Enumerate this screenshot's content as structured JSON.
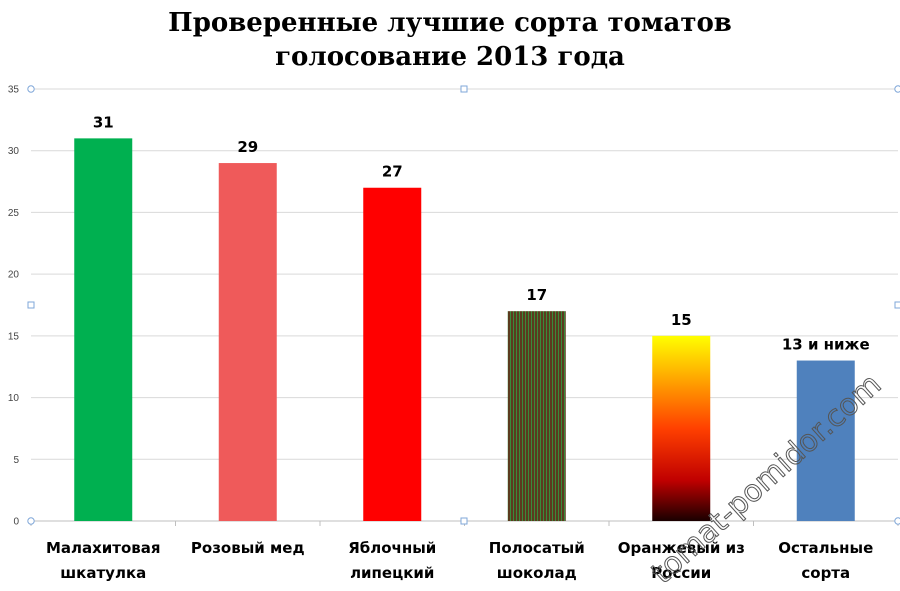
{
  "chart_data": {
    "type": "bar",
    "title_lines": [
      "Проверенные лучшие сорта томатов",
      "голосование 2013 года"
    ],
    "categories": [
      [
        "Малахитовая",
        "шкатулка"
      ],
      [
        "Розовый мед"
      ],
      [
        "Яблочный",
        "липецкий"
      ],
      [
        "Полосатый",
        "шоколад"
      ],
      [
        "Оранжевый из",
        "России"
      ],
      [
        "Остальные",
        "сорта"
      ]
    ],
    "values": [
      31,
      29,
      27,
      17,
      15,
      13
    ],
    "data_labels": [
      "31",
      "29",
      "27",
      "17",
      "15",
      "13 и ниже"
    ],
    "bar_colors": [
      "#00b050",
      "#ef5a5a",
      "#ff0000",
      "#5b3a1e",
      "gradient-yellow-red-black",
      "#4f81bd"
    ],
    "ylim": [
      0,
      35
    ],
    "yticks": [
      0,
      5,
      10,
      15,
      20,
      25,
      30,
      35
    ],
    "grid": true,
    "legend": "none",
    "xlabel": "",
    "ylabel": ""
  },
  "watermark": "tomat-pomidor.com"
}
